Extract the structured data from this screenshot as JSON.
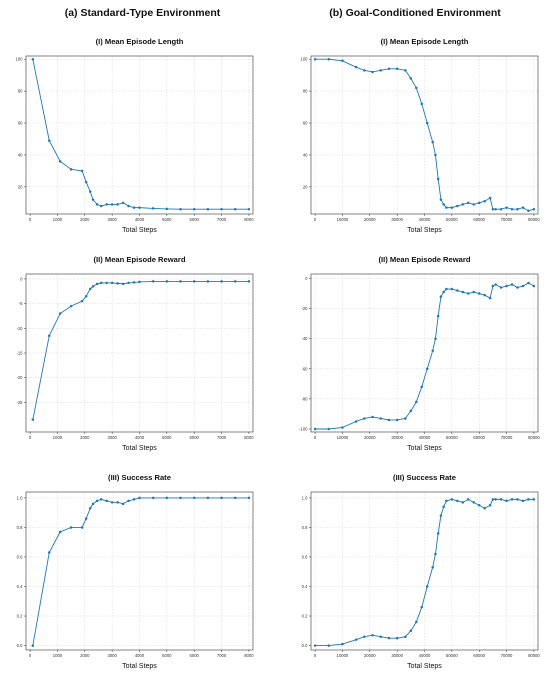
{
  "columns": [
    {
      "title": "(a) Standard-Type Environment"
    },
    {
      "title": "(b) Goal-Conditioned  Environment"
    }
  ],
  "colors": {
    "line": "#1f77b4",
    "grid": "#c8c8c8",
    "axis": "#333333"
  },
  "chart_data": [
    {
      "id": "std-length",
      "type": "line",
      "markers": true,
      "title": "(I) Mean Episode Length",
      "xlabel": "Total Steps",
      "ylabel": "",
      "xlim": [
        -150,
        8150
      ],
      "ylim": [
        3,
        102
      ],
      "xticks": [
        0,
        1000,
        2000,
        3000,
        4000,
        5000,
        6000,
        7000,
        8000
      ],
      "yticks": [
        20,
        40,
        60,
        80,
        100
      ],
      "xtick_labels": [
        "0",
        "1000",
        "2000",
        "3000",
        "4000",
        "5000",
        "6000",
        "7000",
        "8000"
      ],
      "ytick_labels": [
        "20",
        "40",
        "60",
        "80",
        "100"
      ],
      "grid": true,
      "series": [
        {
          "x": [
            100,
            700,
            1100,
            1500,
            1900,
            2050,
            2200,
            2300,
            2450,
            2600,
            2800,
            3000,
            3200,
            3400,
            3600,
            3800,
            4000,
            4500,
            5000,
            5500,
            6000,
            6500,
            7000,
            7500,
            8000
          ],
          "y": [
            100,
            49,
            36,
            31,
            30,
            23,
            17,
            12,
            9,
            8,
            9,
            9,
            9,
            10,
            8,
            7,
            7,
            6.5,
            6.2,
            6,
            6,
            6,
            6,
            6,
            6
          ]
        }
      ]
    },
    {
      "id": "gc-length",
      "type": "line",
      "markers": true,
      "title": "(I) Mean Episode Length",
      "xlabel": "Total Steps",
      "ylabel": "",
      "xlim": [
        -1500,
        81500
      ],
      "ylim": [
        3,
        102
      ],
      "xticks": [
        0,
        10000,
        20000,
        30000,
        40000,
        50000,
        60000,
        70000,
        80000
      ],
      "yticks": [
        20,
        40,
        60,
        80,
        100
      ],
      "xtick_labels": [
        "0",
        "10000",
        "20000",
        "30000",
        "40000",
        "50000",
        "60000",
        "70000",
        "80000"
      ],
      "ytick_labels": [
        "20",
        "40",
        "60",
        "80",
        "100"
      ],
      "grid": true,
      "series": [
        {
          "x": [
            0,
            5000,
            10000,
            15000,
            18000,
            21000,
            24000,
            27000,
            30000,
            33000,
            35000,
            37000,
            39000,
            41000,
            43000,
            44000,
            45000,
            46000,
            47000,
            48000,
            50000,
            52000,
            54000,
            56000,
            58000,
            60000,
            62000,
            64000,
            65000,
            66000,
            68000,
            70000,
            72000,
            74000,
            76000,
            78000,
            80000
          ],
          "y": [
            100,
            100,
            99,
            95,
            93,
            92,
            93,
            94,
            94,
            93,
            88,
            82,
            72,
            60,
            48,
            40,
            25,
            12,
            9,
            7,
            7,
            8,
            9,
            10,
            9,
            10,
            11,
            13,
            6,
            6,
            6,
            7,
            6,
            6,
            7,
            5,
            6
          ]
        }
      ]
    },
    {
      "id": "std-reward",
      "type": "line",
      "markers": true,
      "title": "(II) Mean Episode Reward",
      "xlabel": "Total Steps",
      "ylabel": "",
      "xlim": [
        -150,
        8150
      ],
      "ylim": [
        -31,
        1
      ],
      "xticks": [
        0,
        1000,
        2000,
        3000,
        4000,
        5000,
        6000,
        7000,
        8000
      ],
      "yticks": [
        0,
        -5,
        -10,
        -15,
        -20,
        -25
      ],
      "xtick_labels": [
        "0",
        "1000",
        "2000",
        "3000",
        "4000",
        "5000",
        "6000",
        "7000",
        "8000"
      ],
      "ytick_labels": [
        "0",
        "-5",
        "-10",
        "-15",
        "-20",
        "-25"
      ],
      "grid": true,
      "series": [
        {
          "x": [
            100,
            700,
            1100,
            1500,
            1900,
            2050,
            2200,
            2300,
            2450,
            2600,
            2800,
            3000,
            3200,
            3400,
            3600,
            3800,
            4000,
            4500,
            5000,
            5500,
            6000,
            6500,
            7000,
            7500,
            8000
          ],
          "y": [
            -28.5,
            -11.5,
            -7,
            -5.5,
            -4.5,
            -3.5,
            -2,
            -1.5,
            -1,
            -0.8,
            -0.8,
            -0.8,
            -0.9,
            -1,
            -0.8,
            -0.7,
            -0.6,
            -0.5,
            -0.5,
            -0.5,
            -0.5,
            -0.5,
            -0.5,
            -0.5,
            -0.5
          ]
        }
      ]
    },
    {
      "id": "gc-reward",
      "type": "line",
      "markers": true,
      "title": "(II) Mean Episode Reward",
      "xlabel": "Total Steps",
      "ylabel": "",
      "xlim": [
        -1500,
        81500
      ],
      "ylim": [
        -102,
        3
      ],
      "xticks": [
        0,
        10000,
        20000,
        30000,
        40000,
        50000,
        60000,
        70000,
        80000
      ],
      "yticks": [
        0,
        -20,
        -40,
        -60,
        -80,
        -100
      ],
      "xtick_labels": [
        "0",
        "10000",
        "20000",
        "30000",
        "40000",
        "50000",
        "60000",
        "70000",
        "80000"
      ],
      "ytick_labels": [
        "0",
        "-20",
        "-40",
        "-60",
        "-80",
        "-100"
      ],
      "grid": true,
      "series": [
        {
          "x": [
            0,
            5000,
            10000,
            15000,
            18000,
            21000,
            24000,
            27000,
            30000,
            33000,
            35000,
            37000,
            39000,
            41000,
            43000,
            44000,
            45000,
            46000,
            47000,
            48000,
            50000,
            52000,
            54000,
            56000,
            58000,
            60000,
            62000,
            64000,
            65000,
            66000,
            68000,
            70000,
            72000,
            74000,
            76000,
            78000,
            80000
          ],
          "y": [
            -100,
            -100,
            -99,
            -95,
            -93,
            -92,
            -93,
            -94,
            -94,
            -93,
            -88,
            -82,
            -72,
            -60,
            -48,
            -40,
            -25,
            -12,
            -9,
            -7,
            -7,
            -8,
            -9,
            -10,
            -9,
            -10,
            -11,
            -13,
            -5,
            -4,
            -6,
            -5,
            -4,
            -6,
            -5,
            -3,
            -5
          ]
        }
      ]
    },
    {
      "id": "std-success",
      "type": "line",
      "markers": true,
      "title": "(III) Success Rate",
      "xlabel": "Total Steps",
      "ylabel": "",
      "xlim": [
        -150,
        8150
      ],
      "ylim": [
        -0.03,
        1.04
      ],
      "xticks": [
        0,
        1000,
        2000,
        3000,
        4000,
        5000,
        6000,
        7000,
        8000
      ],
      "yticks": [
        0.0,
        0.2,
        0.4,
        0.6,
        0.8,
        1.0
      ],
      "xtick_labels": [
        "0",
        "1000",
        "2000",
        "3000",
        "4000",
        "5000",
        "6000",
        "7000",
        "8000"
      ],
      "ytick_labels": [
        "0.0",
        "0.2",
        "0.4",
        "0.6",
        "0.8",
        "1.0"
      ],
      "grid": true,
      "series": [
        {
          "x": [
            100,
            700,
            1100,
            1500,
            1900,
            2050,
            2200,
            2300,
            2450,
            2600,
            2800,
            3000,
            3200,
            3400,
            3600,
            3800,
            4000,
            4500,
            5000,
            5500,
            6000,
            6500,
            7000,
            7500,
            8000
          ],
          "y": [
            0.0,
            0.63,
            0.77,
            0.8,
            0.8,
            0.86,
            0.93,
            0.96,
            0.98,
            0.99,
            0.98,
            0.97,
            0.97,
            0.96,
            0.98,
            0.99,
            1.0,
            1.0,
            1.0,
            1.0,
            1.0,
            1.0,
            1.0,
            1.0,
            1.0
          ]
        }
      ]
    },
    {
      "id": "gc-success",
      "type": "line",
      "markers": true,
      "title": "(III) Success Rate",
      "xlabel": "Total Steps",
      "ylabel": "",
      "xlim": [
        -1500,
        81500
      ],
      "ylim": [
        -0.03,
        1.04
      ],
      "xticks": [
        0,
        10000,
        20000,
        30000,
        40000,
        50000,
        60000,
        70000,
        80000
      ],
      "yticks": [
        0.0,
        0.2,
        0.4,
        0.6,
        0.8,
        1.0
      ],
      "xtick_labels": [
        "0",
        "10000",
        "20000",
        "30000",
        "40000",
        "50000",
        "60000",
        "70000",
        "80000"
      ],
      "ytick_labels": [
        "0.0",
        "0.2",
        "0.4",
        "0.6",
        "0.8",
        "1.0"
      ],
      "grid": true,
      "series": [
        {
          "x": [
            0,
            5000,
            10000,
            15000,
            18000,
            21000,
            24000,
            27000,
            30000,
            33000,
            35000,
            37000,
            39000,
            41000,
            43000,
            44000,
            45000,
            46000,
            47000,
            48000,
            50000,
            52000,
            54000,
            56000,
            58000,
            60000,
            62000,
            64000,
            65000,
            66000,
            68000,
            70000,
            72000,
            74000,
            76000,
            78000,
            80000
          ],
          "y": [
            0.0,
            0.0,
            0.01,
            0.04,
            0.06,
            0.07,
            0.06,
            0.05,
            0.05,
            0.06,
            0.1,
            0.16,
            0.26,
            0.4,
            0.53,
            0.62,
            0.76,
            0.88,
            0.94,
            0.98,
            0.99,
            0.98,
            0.97,
            0.99,
            0.97,
            0.95,
            0.93,
            0.95,
            0.99,
            0.99,
            0.99,
            0.98,
            0.99,
            0.99,
            0.98,
            0.99,
            0.99
          ]
        }
      ]
    }
  ]
}
